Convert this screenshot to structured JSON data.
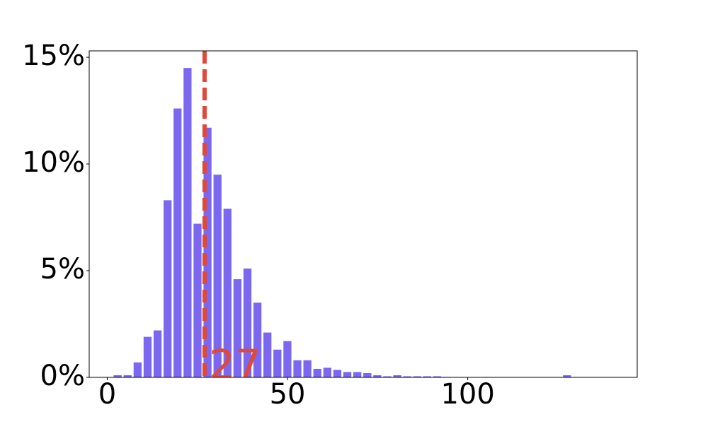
{
  "chart_data": {
    "type": "histogram",
    "bins": [
      1.5,
      4.27,
      7.04,
      9.81,
      12.58,
      15.35,
      18.12,
      20.89,
      23.66,
      26.43,
      29.2,
      31.97,
      34.74,
      37.51,
      40.28,
      43.05,
      45.82,
      48.59,
      51.36,
      54.13,
      56.9,
      59.67,
      62.44,
      65.21,
      67.98,
      70.75,
      73.52,
      76.29,
      79.06,
      81.83,
      84.6,
      87.37,
      90.14,
      92.91,
      95.68,
      98.45,
      101.22,
      103.99,
      106.76,
      109.53,
      112.3,
      115.07,
      117.84,
      120.61,
      123.38,
      126.15,
      128.92
    ],
    "values": [
      0.1,
      0.1,
      0.7,
      1.9,
      2.2,
      8.3,
      12.6,
      14.5,
      7.2,
      11.7,
      9.5,
      7.9,
      4.6,
      5.1,
      3.5,
      2.1,
      1.3,
      1.7,
      0.8,
      0.8,
      0.4,
      0.45,
      0.35,
      0.25,
      0.25,
      0.2,
      0.1,
      0.05,
      0.1,
      0.05,
      0.05,
      0.05,
      0.05,
      0.02,
      0,
      0,
      0,
      0.02,
      0,
      0,
      0,
      0,
      0,
      0,
      0,
      0.1
    ],
    "color": "#7b68ee",
    "vline": 27,
    "vline_color": "#e0483a",
    "xlim": [
      -5,
      147
    ],
    "xticks": [
      0,
      50,
      100
    ],
    "ylim": [
      0,
      15.3
    ],
    "yticks": [
      {
        "value": 0,
        "label": "0%"
      },
      {
        "value": 5,
        "label": "5%"
      },
      {
        "value": 10,
        "label": "10%"
      },
      {
        "value": 15,
        "label": "15%"
      }
    ]
  }
}
